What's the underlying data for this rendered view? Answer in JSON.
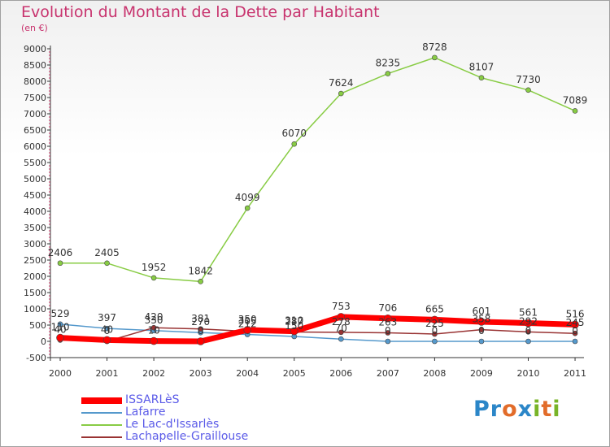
{
  "header": {
    "title": "Evolution du Montant de la Dette par Habitant",
    "subtitle": "(en €)"
  },
  "logo": {
    "text": "Proxiti"
  },
  "chart_data": {
    "type": "line",
    "x": [
      "2000",
      "2001",
      "2002",
      "2003",
      "2004",
      "2005",
      "2006",
      "2007",
      "2008",
      "2009",
      "2010",
      "2011"
    ],
    "ylim": [
      -500,
      9000
    ],
    "yticks": [
      "-500",
      "0",
      "500",
      "1000",
      "1500",
      "2000",
      "2500",
      "3000",
      "3500",
      "4000",
      "4500",
      "5000",
      "5500",
      "6000",
      "6500",
      "7000",
      "7500",
      "8000",
      "8500",
      "9000"
    ],
    "grid": false,
    "legend_position": "bottom-left",
    "series": [
      {
        "name": "ISSARLèS",
        "color": "#ff0000",
        "values": [
          110,
          40,
          10,
          0,
          350,
          310,
          753,
          706,
          665,
          601,
          561,
          516
        ],
        "labels": [
          "110",
          "40",
          "10",
          "0",
          "350",
          "310",
          "753",
          "706",
          "665",
          "601",
          "561",
          "516"
        ]
      },
      {
        "name": "Lafarre",
        "color": "#5599cc",
        "values": [
          529,
          397,
          330,
          270,
          212,
          150,
          70,
          0,
          0,
          0,
          0,
          0
        ],
        "labels": [
          "529",
          "397",
          "330",
          "270",
          "212",
          "150",
          "70",
          "0",
          "0",
          "0",
          "0",
          "0"
        ]
      },
      {
        "name": "Le Lac-d'Issarlès",
        "color": "#88cc44",
        "values": [
          2406,
          2405,
          1952,
          1842,
          4099,
          6070,
          7624,
          8235,
          8728,
          8107,
          7730,
          7089
        ],
        "labels": [
          "2406",
          "2405",
          "1952",
          "1842",
          "4099",
          "6070",
          "7624",
          "8235",
          "8728",
          "8107",
          "7730",
          "7089"
        ]
      },
      {
        "name": "Lachapelle-Graillouse",
        "color": "#993333",
        "values": [
          40,
          0,
          420,
          381,
          305,
          287,
          278,
          263,
          225,
          358,
          292,
          245
        ],
        "labels": [
          "40",
          "0",
          "420",
          "381",
          "305",
          "287",
          "278",
          "263",
          "225",
          "358",
          "292",
          "245"
        ]
      }
    ]
  }
}
